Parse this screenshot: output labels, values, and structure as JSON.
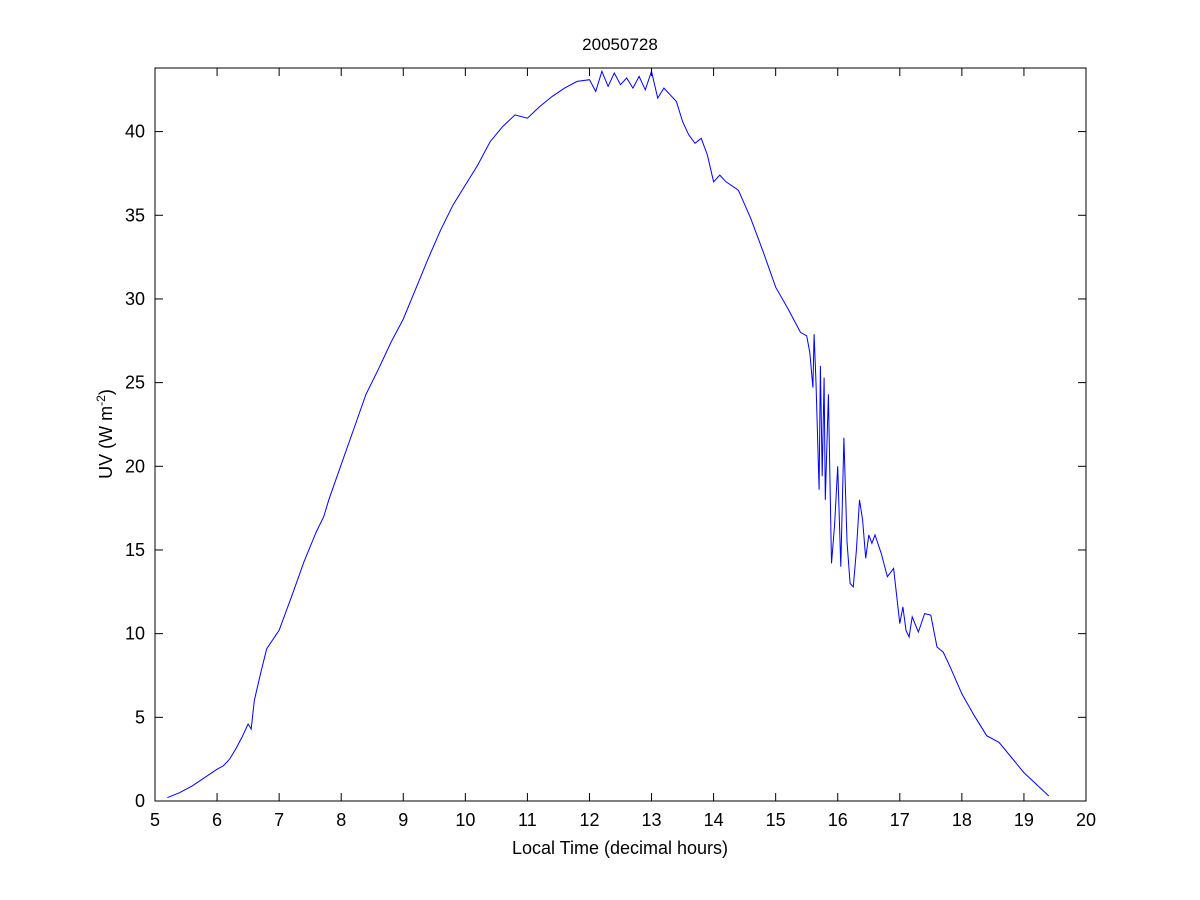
{
  "chart_data": {
    "type": "line",
    "title": "20050728",
    "xlabel": "Local Time (decimal hours)",
    "ylabel": "UV (W m",
    "ylabel_sup": "-2",
    "ylabel_close": ")",
    "xlim": [
      5,
      20
    ],
    "ylim": [
      0,
      43.8
    ],
    "xticks": [
      5,
      6,
      7,
      8,
      9,
      10,
      11,
      12,
      13,
      14,
      15,
      16,
      17,
      18,
      19,
      20
    ],
    "yticks": [
      0,
      5,
      10,
      15,
      20,
      25,
      30,
      35,
      40
    ],
    "grid": false,
    "colors": {
      "line": "#0000ff",
      "axes": "#000000"
    },
    "x": [
      5.2,
      5.4,
      5.6,
      5.8,
      6.0,
      6.1,
      6.2,
      6.3,
      6.4,
      6.5,
      6.55,
      6.6,
      6.7,
      6.8,
      7.0,
      7.2,
      7.4,
      7.6,
      7.72,
      7.8,
      8.0,
      8.2,
      8.4,
      8.6,
      8.8,
      9.0,
      9.2,
      9.4,
      9.6,
      9.8,
      10.0,
      10.2,
      10.4,
      10.6,
      10.8,
      11.0,
      11.2,
      11.4,
      11.6,
      11.8,
      12.0,
      12.1,
      12.2,
      12.3,
      12.4,
      12.5,
      12.6,
      12.7,
      12.8,
      12.9,
      13.0,
      13.1,
      13.2,
      13.3,
      13.4,
      13.5,
      13.6,
      13.7,
      13.8,
      13.9,
      14.0,
      14.1,
      14.2,
      14.4,
      14.6,
      14.8,
      15.0,
      15.2,
      15.4,
      15.5,
      15.55,
      15.6,
      15.62,
      15.65,
      15.7,
      15.72,
      15.75,
      15.78,
      15.8,
      15.85,
      15.9,
      15.95,
      16.0,
      16.05,
      16.1,
      16.15,
      16.2,
      16.25,
      16.3,
      16.35,
      16.4,
      16.45,
      16.5,
      16.55,
      16.6,
      16.7,
      16.8,
      16.9,
      17.0,
      17.05,
      17.1,
      17.15,
      17.2,
      17.3,
      17.4,
      17.5,
      17.6,
      17.7,
      17.8,
      18.0,
      18.2,
      18.4,
      18.6,
      18.8,
      19.0,
      19.2,
      19.4
    ],
    "y": [
      0.2,
      0.5,
      0.9,
      1.4,
      1.9,
      2.1,
      2.5,
      3.1,
      3.8,
      4.6,
      4.3,
      6.0,
      7.6,
      9.1,
      10.2,
      12.2,
      14.3,
      16.1,
      17.0,
      18.0,
      20.1,
      22.2,
      24.3,
      25.8,
      27.4,
      28.8,
      30.6,
      32.4,
      34.1,
      35.6,
      36.8,
      38.0,
      39.4,
      40.3,
      41.0,
      40.8,
      41.5,
      42.1,
      42.6,
      43.0,
      43.1,
      42.4,
      43.6,
      42.7,
      43.5,
      42.8,
      43.2,
      42.6,
      43.3,
      42.5,
      43.6,
      42.0,
      42.6,
      42.2,
      41.8,
      40.6,
      39.8,
      39.3,
      39.6,
      38.6,
      37.0,
      37.4,
      37.0,
      36.5,
      34.8,
      32.8,
      30.7,
      29.4,
      28.0,
      27.8,
      26.8,
      24.7,
      27.9,
      25.0,
      18.6,
      26.0,
      19.4,
      25.3,
      18.0,
      24.3,
      14.2,
      16.5,
      20.0,
      14.0,
      21.7,
      15.5,
      13.0,
      12.8,
      15.0,
      18.0,
      16.8,
      14.5,
      15.9,
      15.4,
      15.9,
      14.8,
      13.4,
      13.9,
      10.6,
      11.6,
      10.2,
      9.8,
      11.0,
      10.1,
      11.2,
      11.1,
      9.2,
      8.9,
      8.1,
      6.4,
      5.1,
      3.9,
      3.5,
      2.6,
      1.7,
      1.0,
      0.3
    ]
  }
}
